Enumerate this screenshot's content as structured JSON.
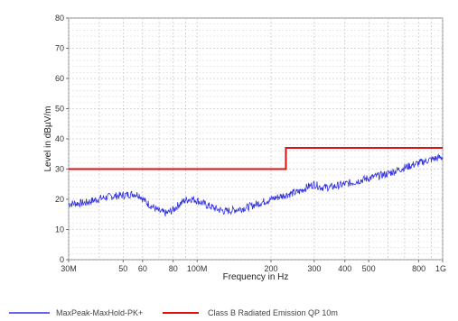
{
  "chart_data": {
    "type": "line",
    "title": "",
    "xlabel": "Frequency in Hz",
    "ylabel": "Level in dBµV/m",
    "x_scale": "log",
    "xlim": [
      30000000,
      1000000000
    ],
    "ylim": [
      0,
      80
    ],
    "grid": true,
    "legend_position": "bottom",
    "x_ticks": [
      {
        "value": 30000000,
        "label": "30M"
      },
      {
        "value": 50000000,
        "label": "50"
      },
      {
        "value": 60000000,
        "label": "60"
      },
      {
        "value": 80000000,
        "label": "80"
      },
      {
        "value": 100000000,
        "label": "100M"
      },
      {
        "value": 200000000,
        "label": "200"
      },
      {
        "value": 300000000,
        "label": "300"
      },
      {
        "value": 400000000,
        "label": "400"
      },
      {
        "value": 500000000,
        "label": "500"
      },
      {
        "value": 800000000,
        "label": "800"
      },
      {
        "value": 1000000000,
        "label": "1G"
      }
    ],
    "y_ticks": [
      0,
      10,
      20,
      30,
      40,
      50,
      60,
      70,
      80
    ],
    "series": [
      {
        "name": "MaxPeak-MaxHold-PK+",
        "color": "#3333dd",
        "points": [
          [
            30000000,
            18.5
          ],
          [
            35000000,
            18.8
          ],
          [
            40000000,
            20.2
          ],
          [
            45000000,
            21.0
          ],
          [
            50000000,
            21.3
          ],
          [
            55000000,
            21.8
          ],
          [
            58000000,
            21.5
          ],
          [
            62000000,
            19.0
          ],
          [
            66000000,
            17.5
          ],
          [
            70000000,
            16.0
          ],
          [
            75000000,
            15.3
          ],
          [
            80000000,
            16.5
          ],
          [
            85000000,
            18.5
          ],
          [
            90000000,
            19.8
          ],
          [
            95000000,
            20.2
          ],
          [
            100000000,
            19.6
          ],
          [
            110000000,
            18.0
          ],
          [
            120000000,
            16.8
          ],
          [
            130000000,
            16.0
          ],
          [
            140000000,
            16.4
          ],
          [
            160000000,
            17.3
          ],
          [
            180000000,
            18.8
          ],
          [
            200000000,
            20.0
          ],
          [
            230000000,
            21.5
          ],
          [
            260000000,
            22.5
          ],
          [
            280000000,
            24.0
          ],
          [
            300000000,
            25.0
          ],
          [
            320000000,
            24.0
          ],
          [
            350000000,
            24.0
          ],
          [
            400000000,
            25.0
          ],
          [
            450000000,
            26.0
          ],
          [
            500000000,
            27.0
          ],
          [
            600000000,
            28.5
          ],
          [
            700000000,
            30.5
          ],
          [
            800000000,
            32.0
          ],
          [
            900000000,
            33.2
          ],
          [
            1000000000,
            34.0
          ]
        ]
      },
      {
        "name": "Class  B Radiated Emission  QP  10m",
        "color": "#dd1111",
        "points": [
          [
            30000000,
            30
          ],
          [
            230000000,
            30
          ],
          [
            230000000,
            37
          ],
          [
            1000000000,
            37
          ]
        ]
      }
    ]
  }
}
